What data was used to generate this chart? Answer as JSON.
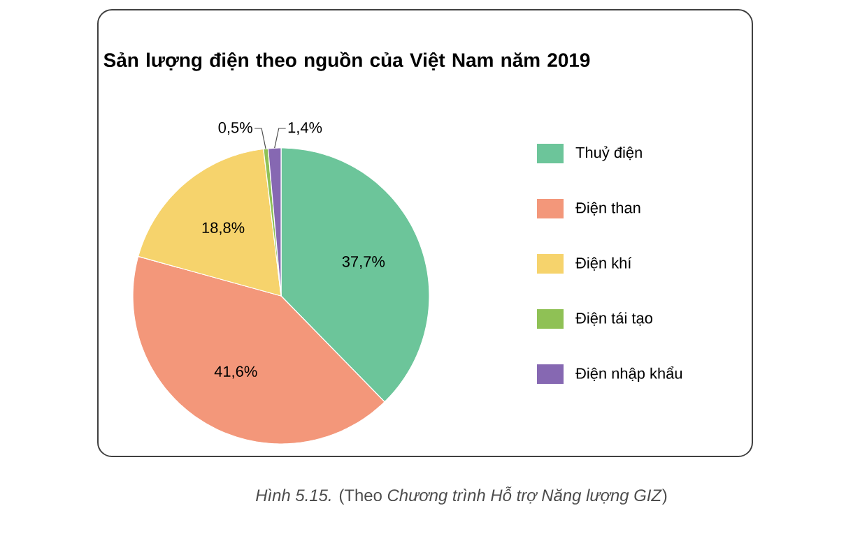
{
  "chart_data": {
    "type": "pie",
    "title": "Sản lượng điện theo nguồn của Việt Nam năm 2019",
    "categories": [
      "Thuỷ điện",
      "Điện than",
      "Điện khí",
      "Điện tái tạo",
      "Điện nhập khẩu"
    ],
    "values": [
      37.7,
      41.6,
      18.8,
      0.5,
      1.4
    ],
    "value_labels": [
      "37,7%",
      "41,6%",
      "18,8%",
      "0,5%",
      "1,4%"
    ],
    "colors": [
      "#6cc59a",
      "#f3977a",
      "#f6d36c",
      "#8fc155",
      "#8668b2"
    ],
    "legend": "right",
    "annotations": [
      "*Hình 5.15.* (Theo *Chương trình Hỗ trợ Năng lượng GIZ*)"
    ]
  }
}
